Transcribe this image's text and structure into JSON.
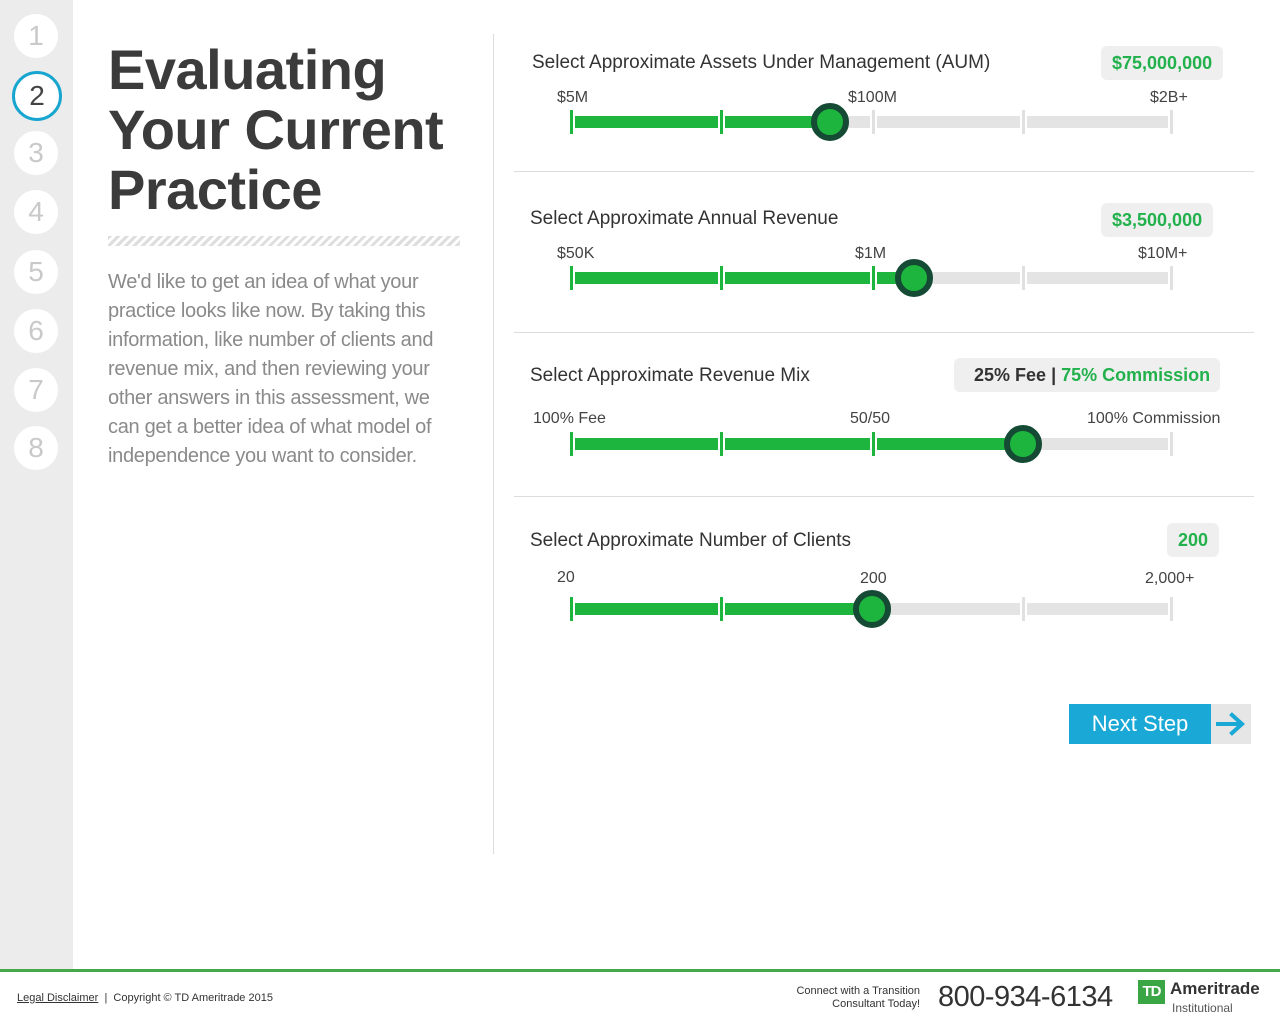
{
  "steps": [
    "1",
    "2",
    "3",
    "4",
    "5",
    "6",
    "7",
    "8"
  ],
  "active_step": 2,
  "page_title": [
    "Evaluating",
    "Your Current",
    "Practice"
  ],
  "intro": "We'd like to get an idea of what your practice looks like now.  By taking this information, like number of clients and revenue mix, and then reviewing your other answers in this assessment, we can get a better idea of what model of independence you want to consider.",
  "sliders": {
    "aum": {
      "label": "Select Approximate Assets Under Management (AUM)",
      "value": "$75,000,000",
      "ticks": [
        "$5M",
        "$100M",
        "$2B+"
      ],
      "position": 0.43
    },
    "revenue": {
      "label": "Select Approximate Annual Revenue",
      "value": "$3,500,000",
      "ticks": [
        "$50K",
        "$1M",
        "$10M+"
      ],
      "position": 0.57
    },
    "mix": {
      "label": "Select Approximate Revenue Mix",
      "fee": "25% Fee",
      "separator": "|",
      "commission": "75% Commission",
      "ticks": [
        "100% Fee",
        "50/50",
        "100% Commission"
      ],
      "position": 0.75
    },
    "clients": {
      "label": "Select Approximate Number of Clients",
      "value": "200",
      "ticks": [
        "20",
        "200",
        "2,000+"
      ],
      "position": 0.5
    }
  },
  "next_button": {
    "label": "Next Step"
  },
  "footer": {
    "legal": "Legal Disclaimer",
    "divider": "|",
    "copyright": "Copyright © TD Ameritrade 2015",
    "cta_line1": "Connect with a Transition",
    "cta_line2": "Consultant Today!",
    "phone": "800-934-6134",
    "logo_mark": "TD",
    "logo_name": "Ameritrade",
    "logo_sub": "Institutional"
  },
  "colors": {
    "accent_green": "#1db53d",
    "thumb_ring": "#154a35",
    "step_active_ring": "#18a5cf",
    "next_button": "#1aa8d6",
    "footer_line": "#45a84a"
  }
}
